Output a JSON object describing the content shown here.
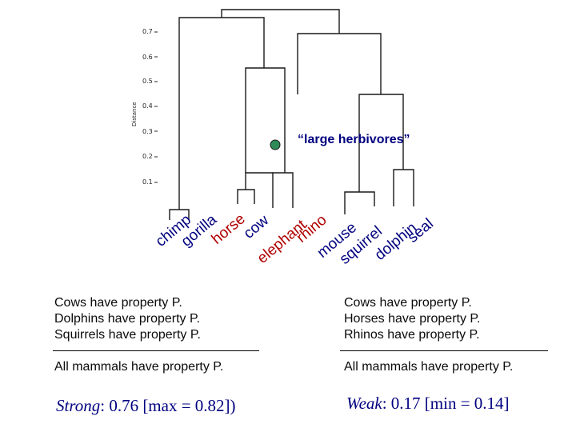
{
  "dendrogram": {
    "y_axis_label": "Distance",
    "y_ticks": [
      "0.7",
      "0.6",
      "0.5",
      "0.4",
      "0.3",
      "0.2",
      "0.1"
    ],
    "leaves": [
      "chimp",
      "gorilla",
      "horse",
      "cow",
      "elephant",
      "rhino",
      "mouse",
      "squirrel",
      "dolphin",
      "seal"
    ],
    "leaf_colors": [
      "#000080",
      "#000080",
      "#b00000",
      "#000080",
      "#b00000",
      "#b00000",
      "#000080",
      "#000080",
      "#000080",
      "#000080"
    ],
    "callout": "“large herbivores”",
    "node_color": "#2e8b57"
  },
  "strong_argument": {
    "premises": [
      "Cows have property P.",
      "Dolphins have property P.",
      "Squirrels have property P."
    ],
    "conclusion": "All mammals have property P.",
    "label": "Strong",
    "score": ": 0.76 [max = 0.82])"
  },
  "weak_argument": {
    "premises": [
      "Cows have property P.",
      "Horses have property P.",
      "Rhinos have property P."
    ],
    "conclusion": "All mammals have property P.",
    "label": "Weak",
    "score": ": 0.17 [min = 0.14]"
  }
}
